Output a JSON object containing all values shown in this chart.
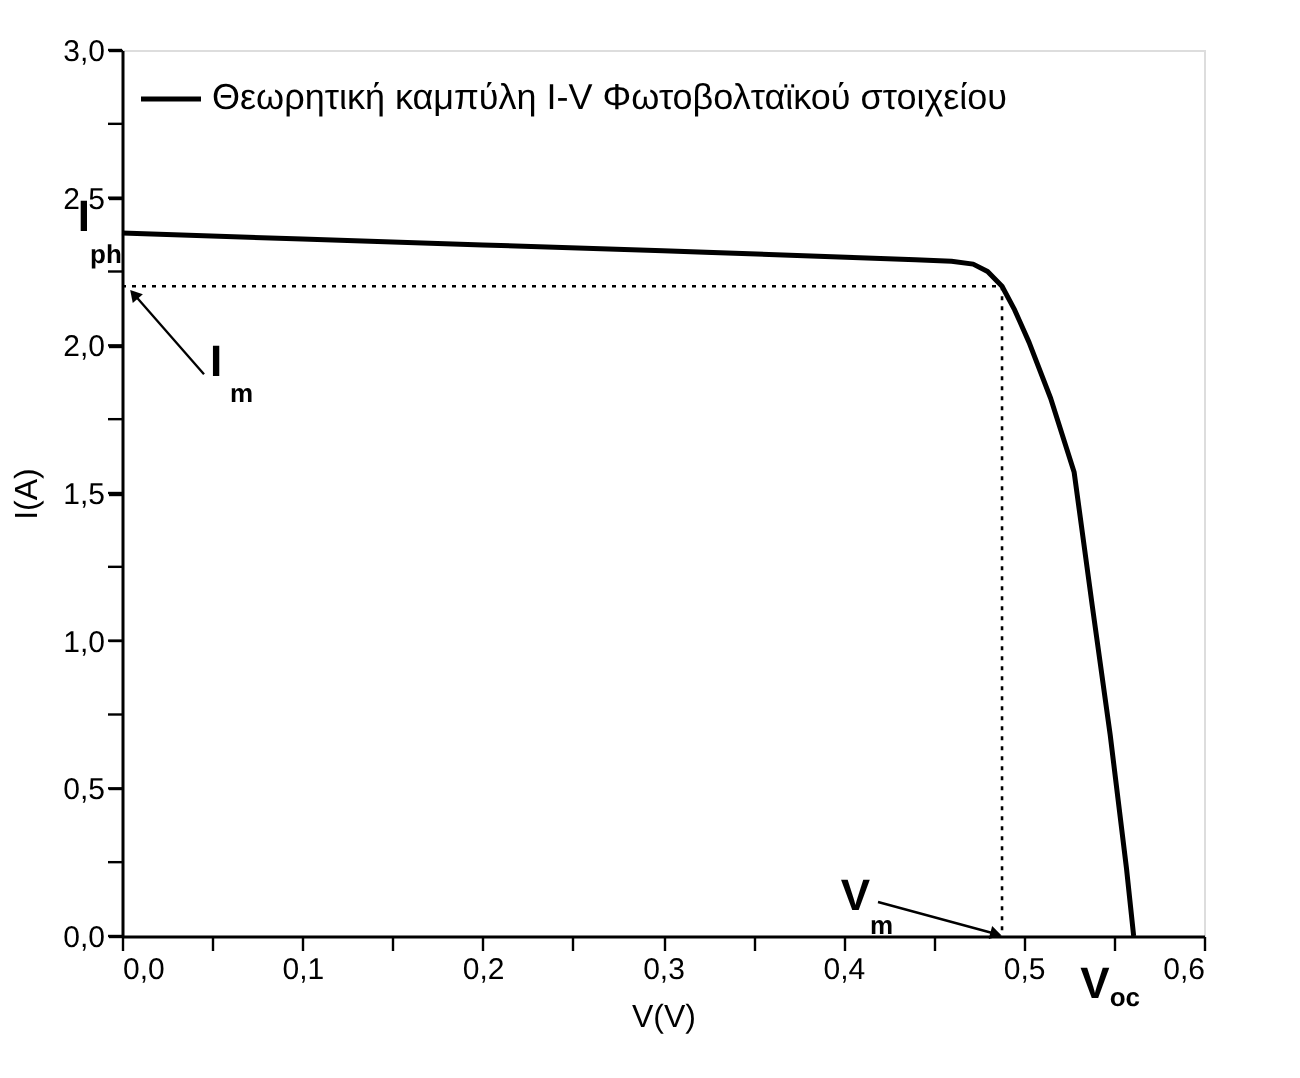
{
  "chart_data": {
    "type": "line",
    "xlabel": "V(V)",
    "ylabel": "I(A)",
    "legend": "top left",
    "grid": false,
    "marker": "none",
    "series": [
      {
        "name": "Θεωρητική καμπύλη I-V Φωτοβολταϊκού στοιχείου",
        "color": "#000000",
        "line_style": "solid",
        "x": [
          0,
          0.1,
          0.2,
          0.3,
          0.44,
          0.46,
          0.472,
          0.48,
          0.488,
          0.495,
          0.503,
          0.515,
          0.528,
          0.538,
          0.548,
          0.557,
          0.561
        ],
        "values": [
          2.38,
          2.36,
          2.34,
          2.32,
          2.29,
          2.285,
          2.275,
          2.25,
          2.2,
          2.12,
          2.01,
          1.82,
          1.57,
          1.12,
          0.68,
          0.23,
          0
        ]
      },
      {
        "color": "#000000",
        "line_style": "dotted",
        "x": [
          0,
          0.488,
          0.488
        ],
        "values": [
          2.2,
          2.2,
          0
        ]
      }
    ],
    "xlim": [
      0,
      0.6
    ],
    "ylim": [
      0,
      3
    ],
    "xticks": [
      {
        "value": 0,
        "label": "0,0"
      },
      {
        "value": 0.05,
        "label": null
      },
      {
        "value": 0.1,
        "label": "0,1"
      },
      {
        "value": 0.15,
        "label": null
      },
      {
        "value": 0.2,
        "label": "0,2"
      },
      {
        "value": 0.25,
        "label": null
      },
      {
        "value": 0.3,
        "label": "0,3"
      },
      {
        "value": 0.35,
        "label": null
      },
      {
        "value": 0.4,
        "label": "0,4"
      },
      {
        "value": 0.45,
        "label": null
      },
      {
        "value": 0.5,
        "label": "0,5"
      },
      {
        "value": 0.55,
        "label": null
      },
      {
        "value": 0.6,
        "label": "0,6"
      }
    ],
    "yticks": [
      {
        "value": 0,
        "label": "0,0"
      },
      {
        "value": 0.25,
        "label": null
      },
      {
        "value": 0.5,
        "label": "0,5"
      },
      {
        "value": 0.75,
        "label": null
      },
      {
        "value": 1,
        "label": "1,0"
      },
      {
        "value": 1.25,
        "label": null
      },
      {
        "value": 1.5,
        "label": "1,5"
      },
      {
        "value": 1.75,
        "label": null
      },
      {
        "value": 2,
        "label": "2,0"
      },
      {
        "value": 2.25,
        "label": null
      },
      {
        "value": 2.5,
        "label": "2,5"
      },
      {
        "value": 2.75,
        "label": null
      },
      {
        "value": 3,
        "label": "3,0"
      }
    ],
    "annotations": [
      {
        "text": "I$_{ph}$",
        "x": 0,
        "y": 2.38
      },
      {
        "text": "I$_{m}$",
        "x": 0,
        "y": 2.2
      },
      {
        "text": "V$_{m}$",
        "x": 0.488,
        "y": 0
      },
      {
        "text": "V$_{oc}$",
        "x": 0.561,
        "y": 0
      }
    ]
  }
}
